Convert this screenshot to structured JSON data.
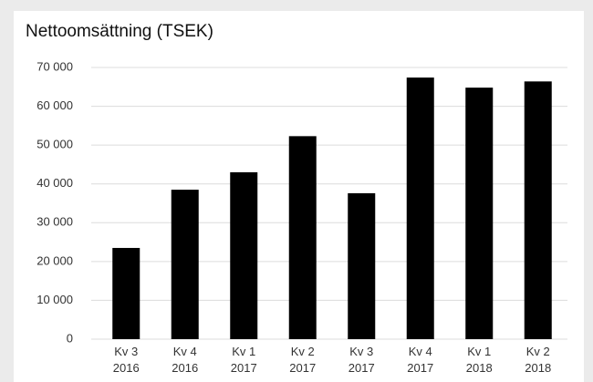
{
  "chart_data": {
    "type": "bar",
    "title": "Nettoomsättning (TSEK)",
    "categories": [
      [
        "Kv 3",
        "2016"
      ],
      [
        "Kv 4",
        "2016"
      ],
      [
        "Kv 1",
        "2017"
      ],
      [
        "Kv 2",
        "2017"
      ],
      [
        "Kv 3",
        "2017"
      ],
      [
        "Kv 4",
        "2017"
      ],
      [
        "Kv 1",
        "2018"
      ],
      [
        "Kv 2",
        "2018"
      ]
    ],
    "values": [
      23500,
      38500,
      43000,
      52300,
      37600,
      67400,
      64800,
      66400
    ],
    "color": "#000000",
    "ylim": [
      0,
      70000
    ],
    "yticks": [
      0,
      {
        "value": 10000,
        "label": "10 000"
      },
      {
        "value": 20000,
        "label": "20 000"
      },
      {
        "value": 30000,
        "label": "30 000"
      },
      {
        "value": 40000,
        "label": "40 000"
      },
      {
        "value": 50000,
        "label": "50 000"
      },
      {
        "value": 60000,
        "label": "60 000"
      },
      {
        "value": 70000,
        "label": "70 000"
      }
    ],
    "grid": true
  }
}
